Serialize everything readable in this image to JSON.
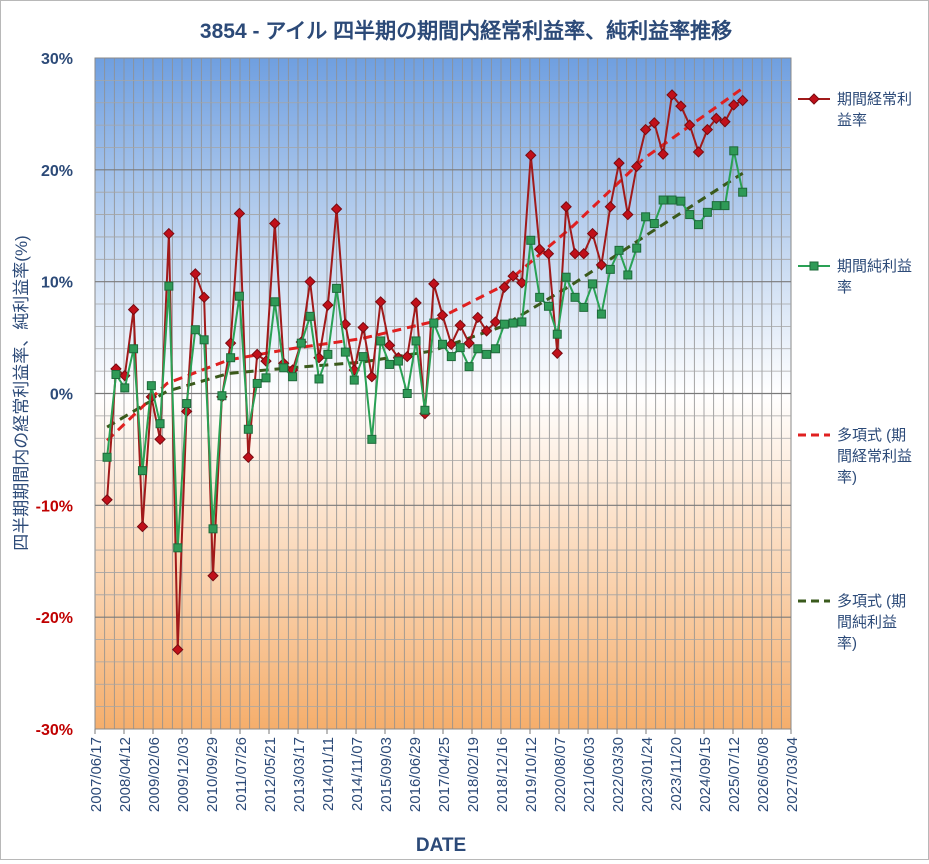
{
  "chart_data": {
    "type": "line",
    "title": "3854 - アイル 四半期の期間内経常利益率、純利益率推移",
    "xlabel": "DATE",
    "ylabel": "四半期期間内の経常利益率、純利益率(%)",
    "ylim": [
      -30,
      30
    ],
    "y_ticks": [
      "30%",
      "20%",
      "10%",
      "0%",
      "-10%",
      "-20%",
      "-30%"
    ],
    "y_tick_values": [
      30,
      20,
      10,
      0,
      -10,
      -20,
      -30
    ],
    "x_ticks": [
      "2007/06/17",
      "2008/04/12",
      "2009/02/06",
      "2009/12/03",
      "2010/09/29",
      "2011/07/26",
      "2012/05/21",
      "2013/03/17",
      "2014/01/11",
      "2014/11/07",
      "2015/09/03",
      "2016/06/29",
      "2017/04/25",
      "2018/02/19",
      "2018/12/16",
      "2019/10/12",
      "2020/08/07",
      "2021/06/03",
      "2022/03/30",
      "2023/01/24",
      "2023/11/20",
      "2024/09/15",
      "2025/07/12",
      "2026/05/08",
      "2027/03/04"
    ],
    "x_tick_start": "2007/06/17",
    "x_tick_interval_days": 300,
    "series": [
      {
        "name": "期間経常利益率",
        "legend_lines": [
          "期間経常利",
          "益率"
        ],
        "color": "#a11a1a",
        "marker": "diamond",
        "points": [
          [
            "2007/10/20",
            -9.5
          ],
          [
            "2008/01/20",
            2.2
          ],
          [
            "2008/04/20",
            1.6
          ],
          [
            "2008/07/20",
            7.5
          ],
          [
            "2008/10/20",
            -11.9
          ],
          [
            "2009/01/20",
            -0.3
          ],
          [
            "2009/04/20",
            -4.1
          ],
          [
            "2009/07/20",
            14.3
          ],
          [
            "2009/10/20",
            -22.9
          ],
          [
            "2010/01/20",
            -1.6
          ],
          [
            "2010/04/20",
            10.7
          ],
          [
            "2010/07/20",
            8.6
          ],
          [
            "2010/10/20",
            -16.3
          ],
          [
            "2011/01/20",
            -0.3
          ],
          [
            "2011/04/20",
            4.5
          ],
          [
            "2011/07/20",
            16.1
          ],
          [
            "2011/10/20",
            -5.7
          ],
          [
            "2012/01/20",
            3.5
          ],
          [
            "2012/04/20",
            2.9
          ],
          [
            "2012/07/20",
            15.2
          ],
          [
            "2012/10/20",
            2.7
          ],
          [
            "2013/01/20",
            2.1
          ],
          [
            "2013/04/20",
            4.6
          ],
          [
            "2013/07/20",
            10.0
          ],
          [
            "2013/10/20",
            3.2
          ],
          [
            "2014/01/20",
            7.9
          ],
          [
            "2014/04/20",
            16.5
          ],
          [
            "2014/07/20",
            6.2
          ],
          [
            "2014/10/20",
            2.1
          ],
          [
            "2015/01/20",
            5.9
          ],
          [
            "2015/04/20",
            1.5
          ],
          [
            "2015/07/20",
            8.2
          ],
          [
            "2015/10/20",
            4.3
          ],
          [
            "2016/01/20",
            3.2
          ],
          [
            "2016/04/20",
            3.3
          ],
          [
            "2016/07/20",
            8.1
          ],
          [
            "2016/10/20",
            -1.8
          ],
          [
            "2017/01/20",
            9.8
          ],
          [
            "2017/04/20",
            7.0
          ],
          [
            "2017/07/20",
            4.4
          ],
          [
            "2017/10/20",
            6.1
          ],
          [
            "2018/01/20",
            4.5
          ],
          [
            "2018/04/20",
            6.8
          ],
          [
            "2018/07/20",
            5.6
          ],
          [
            "2018/10/20",
            6.4
          ],
          [
            "2019/01/20",
            9.5
          ],
          [
            "2019/04/20",
            10.5
          ],
          [
            "2019/07/20",
            9.9
          ],
          [
            "2019/10/20",
            21.3
          ],
          [
            "2020/01/20",
            12.9
          ],
          [
            "2020/04/20",
            12.5
          ],
          [
            "2020/07/20",
            3.6
          ],
          [
            "2020/10/20",
            16.7
          ],
          [
            "2021/01/20",
            12.5
          ],
          [
            "2021/04/20",
            12.5
          ],
          [
            "2021/07/20",
            14.3
          ],
          [
            "2021/10/20",
            11.5
          ],
          [
            "2022/01/20",
            16.7
          ],
          [
            "2022/04/20",
            20.6
          ],
          [
            "2022/07/20",
            16.0
          ],
          [
            "2022/10/20",
            20.3
          ],
          [
            "2023/01/20",
            23.6
          ],
          [
            "2023/04/20",
            24.2
          ],
          [
            "2023/07/20",
            21.4
          ],
          [
            "2023/10/20",
            26.7
          ],
          [
            "2024/01/20",
            25.7
          ],
          [
            "2024/04/20",
            24.0
          ],
          [
            "2024/07/20",
            21.6
          ],
          [
            "2024/10/20",
            23.6
          ],
          [
            "2025/01/20",
            24.6
          ],
          [
            "2025/04/20",
            24.3
          ],
          [
            "2025/07/20",
            25.8
          ],
          [
            "2025/10/20",
            26.2
          ]
        ]
      },
      {
        "name": "期間純利益率",
        "legend_lines": [
          "期間純利益",
          "率"
        ],
        "color": "#2aa155",
        "marker": "square",
        "points": [
          [
            "2007/10/20",
            -5.7
          ],
          [
            "2008/01/20",
            1.7
          ],
          [
            "2008/04/20",
            0.5
          ],
          [
            "2008/07/20",
            4.0
          ],
          [
            "2008/10/20",
            -6.9
          ],
          [
            "2009/01/20",
            0.7
          ],
          [
            "2009/04/20",
            -2.7
          ],
          [
            "2009/07/20",
            9.6
          ],
          [
            "2009/10/20",
            -13.8
          ],
          [
            "2010/01/20",
            -0.9
          ],
          [
            "2010/04/20",
            5.7
          ],
          [
            "2010/07/20",
            4.8
          ],
          [
            "2010/10/20",
            -12.1
          ],
          [
            "2011/01/20",
            -0.2
          ],
          [
            "2011/04/20",
            3.2
          ],
          [
            "2011/07/20",
            8.7
          ],
          [
            "2011/10/20",
            -3.2
          ],
          [
            "2012/01/20",
            0.9
          ],
          [
            "2012/04/20",
            1.4
          ],
          [
            "2012/07/20",
            8.2
          ],
          [
            "2012/10/20",
            2.3
          ],
          [
            "2013/01/20",
            1.5
          ],
          [
            "2013/04/20",
            4.5
          ],
          [
            "2013/07/20",
            6.9
          ],
          [
            "2013/10/20",
            1.3
          ],
          [
            "2014/01/20",
            3.5
          ],
          [
            "2014/04/20",
            9.4
          ],
          [
            "2014/07/20",
            3.7
          ],
          [
            "2014/10/20",
            1.2
          ],
          [
            "2015/01/20",
            3.3
          ],
          [
            "2015/04/20",
            -4.1
          ],
          [
            "2015/07/20",
            4.7
          ],
          [
            "2015/10/20",
            2.6
          ],
          [
            "2016/01/20",
            2.9
          ],
          [
            "2016/04/20",
            0.0
          ],
          [
            "2016/07/20",
            4.7
          ],
          [
            "2016/10/20",
            -1.5
          ],
          [
            "2017/01/20",
            6.3
          ],
          [
            "2017/04/20",
            4.4
          ],
          [
            "2017/07/20",
            3.3
          ],
          [
            "2017/10/20",
            4.1
          ],
          [
            "2018/01/20",
            2.4
          ],
          [
            "2018/04/20",
            4.0
          ],
          [
            "2018/07/20",
            3.5
          ],
          [
            "2018/10/20",
            4.0
          ],
          [
            "2019/01/20",
            6.2
          ],
          [
            "2019/04/20",
            6.3
          ],
          [
            "2019/07/20",
            6.4
          ],
          [
            "2019/10/20",
            13.7
          ],
          [
            "2020/01/20",
            8.6
          ],
          [
            "2020/04/20",
            7.8
          ],
          [
            "2020/07/20",
            5.3
          ],
          [
            "2020/10/20",
            10.4
          ],
          [
            "2021/01/20",
            8.6
          ],
          [
            "2021/04/20",
            7.7
          ],
          [
            "2021/07/20",
            9.8
          ],
          [
            "2021/10/20",
            7.1
          ],
          [
            "2022/01/20",
            11.1
          ],
          [
            "2022/04/20",
            12.8
          ],
          [
            "2022/07/20",
            10.6
          ],
          [
            "2022/10/20",
            13.0
          ],
          [
            "2023/01/20",
            15.8
          ],
          [
            "2023/04/20",
            15.2
          ],
          [
            "2023/07/20",
            17.3
          ],
          [
            "2023/10/20",
            17.3
          ],
          [
            "2024/01/20",
            17.2
          ],
          [
            "2024/04/20",
            16.0
          ],
          [
            "2024/07/20",
            15.1
          ],
          [
            "2024/10/20",
            16.2
          ],
          [
            "2025/01/20",
            16.8
          ],
          [
            "2025/04/20",
            16.8
          ],
          [
            "2025/07/20",
            21.7
          ],
          [
            "2025/10/20",
            18.0
          ]
        ]
      }
    ],
    "trendlines": [
      {
        "name": "多項式 (期間経常利益率)",
        "legend_lines": [
          "多項式 (期",
          "間経常利益",
          "率)"
        ],
        "color": "#e02020",
        "dashed": true,
        "points": [
          [
            "2007/10/20",
            -4.2
          ],
          [
            "2009/07/01",
            0.9
          ],
          [
            "2011/04/01",
            3.0
          ],
          [
            "2013/01/01",
            4.0
          ],
          [
            "2015/01/01",
            4.9
          ],
          [
            "2017/01/01",
            6.4
          ],
          [
            "2019/01/01",
            9.6
          ],
          [
            "2021/01/01",
            15.0
          ],
          [
            "2023/01/01",
            21.0
          ],
          [
            "2025/10/20",
            27.3
          ]
        ]
      },
      {
        "name": "多項式 (期間純利益率)",
        "legend_lines": [
          "多項式 (期",
          "間純利益",
          "率)"
        ],
        "color": "#3a5a1c",
        "dashed": true,
        "points": [
          [
            "2007/10/20",
            -3.0
          ],
          [
            "2009/07/01",
            0.2
          ],
          [
            "2011/04/01",
            1.8
          ],
          [
            "2013/01/01",
            2.3
          ],
          [
            "2015/01/01",
            2.8
          ],
          [
            "2017/01/01",
            3.8
          ],
          [
            "2019/01/01",
            6.0
          ],
          [
            "2021/01/01",
            9.8
          ],
          [
            "2023/01/01",
            14.0
          ],
          [
            "2025/10/20",
            19.7
          ]
        ]
      }
    ]
  }
}
